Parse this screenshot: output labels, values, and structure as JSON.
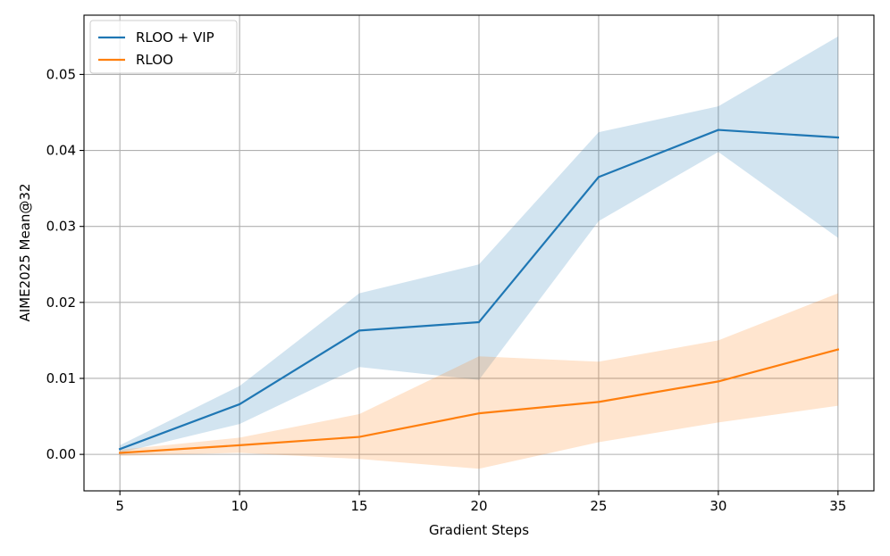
{
  "chart_data": {
    "type": "line",
    "title": "",
    "xlabel": "Gradient Steps",
    "ylabel": "AIME2025 Mean@32",
    "x": [
      5,
      10,
      15,
      20,
      25,
      30,
      35
    ],
    "xlim": [
      3.5,
      36.5
    ],
    "ylim": [
      -0.0048,
      0.0578
    ],
    "xticks": [
      5,
      10,
      15,
      20,
      25,
      30,
      35
    ],
    "xtick_labels": [
      "5",
      "10",
      "15",
      "20",
      "25",
      "30",
      "35"
    ],
    "yticks": [
      0.0,
      0.01,
      0.02,
      0.03,
      0.04,
      0.05
    ],
    "ytick_labels": [
      "0.00",
      "0.01",
      "0.02",
      "0.03",
      "0.04",
      "0.05"
    ],
    "grid": true,
    "legend_position": "top-left",
    "series": [
      {
        "name": "RLOO + VIP",
        "color": "#1f77b4",
        "values": [
          0.0007,
          0.0066,
          0.0163,
          0.0174,
          0.0365,
          0.0427,
          0.0417
        ],
        "band_lower": [
          0.0002,
          0.004,
          0.0115,
          0.0098,
          0.0307,
          0.0398,
          0.0285
        ],
        "band_upper": [
          0.0012,
          0.009,
          0.0212,
          0.025,
          0.0424,
          0.0458,
          0.055
        ]
      },
      {
        "name": "RLOO",
        "color": "#ff7f0e",
        "values": [
          0.0002,
          0.0012,
          0.0023,
          0.0054,
          0.0069,
          0.0096,
          0.0138
        ],
        "band_lower": [
          -0.0002,
          0.0002,
          -0.0006,
          -0.0019,
          0.0016,
          0.0042,
          0.0064
        ],
        "band_upper": [
          0.0006,
          0.0022,
          0.0053,
          0.0129,
          0.0122,
          0.015,
          0.0212
        ]
      }
    ]
  }
}
